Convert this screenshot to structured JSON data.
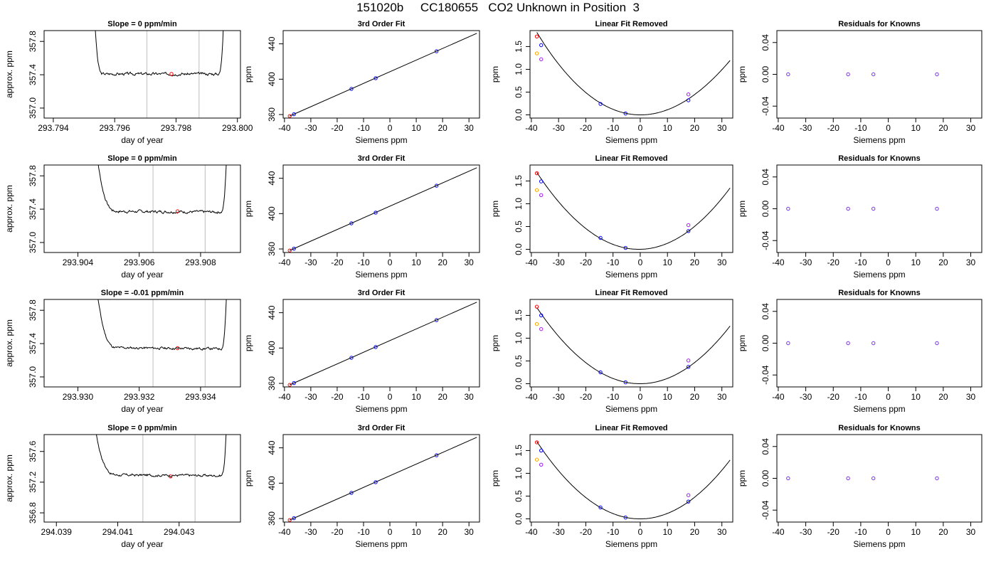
{
  "page": {
    "title": "151020b     CC180655   CO2 Unknown in Position  3"
  },
  "colors": {
    "axis": "#000000",
    "curve": "#000000",
    "vline": "#c8c8c8",
    "marker_red": "#ff0000",
    "marker_blue": "#0000ff",
    "marker_orange": "#ffa500",
    "marker_purple": "#a020f0",
    "marker_violet": "#7b2fe0"
  },
  "chart_data": [
    {
      "type": "line",
      "panel": "trace",
      "row": 0,
      "title": "Slope =  0  ppm/min",
      "xlabel": "day of year",
      "ylabel": "approx. ppm",
      "xlim": [
        293.7937,
        293.8001
      ],
      "ylim": [
        356.88,
        357.93
      ],
      "xticks": [
        293.794,
        293.796,
        293.798,
        293.8
      ],
      "xtick_labels": [
        "293.794",
        "293.796",
        "293.798",
        "293.800"
      ],
      "yticks": [
        357.0,
        357.4,
        357.8
      ],
      "ytick_labels": [
        "357.0",
        "357.4",
        "357.8"
      ],
      "trace": {
        "x_start": 293.7953,
        "x_end": 293.7996,
        "x_drop_end": 293.79562,
        "x_rise_start": 293.79937,
        "level": 357.41,
        "noise": 0.018,
        "drift": 0.0,
        "seed": 3
      },
      "vlines": [
        293.79705,
        293.79875
      ],
      "point": [
        293.79785,
        357.41
      ]
    },
    {
      "type": "line",
      "panel": "trace",
      "row": 1,
      "title": "Slope =  0  ppm/min",
      "xlabel": "day of year",
      "ylabel": "approx. ppm",
      "xlim": [
        293.9029,
        293.9093
      ],
      "ylim": [
        356.88,
        357.93
      ],
      "xticks": [
        293.904,
        293.906,
        293.908
      ],
      "xtick_labels": [
        "293.904",
        "293.906",
        "293.908"
      ],
      "yticks": [
        357.0,
        357.4,
        357.8
      ],
      "ytick_labels": [
        "357.0",
        "357.4",
        "357.8"
      ],
      "trace": {
        "x_start": 293.9045,
        "x_end": 293.9089,
        "x_drop_end": 293.90532,
        "x_rise_start": 293.90865,
        "level": 357.37,
        "noise": 0.018,
        "drift": -0.01,
        "seed": 7
      },
      "vlines": [
        293.90645,
        293.90815
      ],
      "point": [
        293.90725,
        357.375
      ]
    },
    {
      "type": "line",
      "panel": "trace",
      "row": 2,
      "title": "Slope =  -0.01  ppm/min",
      "xlabel": "day of year",
      "ylabel": "approx. ppm",
      "xlim": [
        293.9289,
        293.9353
      ],
      "ylim": [
        356.88,
        357.93
      ],
      "xticks": [
        293.93,
        293.932,
        293.934
      ],
      "xtick_labels": [
        "293.930",
        "293.932",
        "293.934"
      ],
      "yticks": [
        357.0,
        357.4,
        357.8
      ],
      "ytick_labels": [
        "357.0",
        "357.4",
        "357.8"
      ],
      "trace": {
        "x_start": 293.9305,
        "x_end": 293.9349,
        "x_drop_end": 293.93133,
        "x_rise_start": 293.93465,
        "level": 357.345,
        "noise": 0.016,
        "drift": -0.015,
        "seed": 11
      },
      "vlines": [
        293.93245,
        293.93415
      ],
      "point": [
        293.93325,
        357.345
      ]
    },
    {
      "type": "line",
      "panel": "trace",
      "row": 3,
      "title": "Slope =  0  ppm/min",
      "xlabel": "day of year",
      "ylabel": "approx. ppm",
      "xlim": [
        294.0386,
        294.045
      ],
      "ylim": [
        356.68,
        357.82
      ],
      "xticks": [
        294.039,
        294.041,
        294.043
      ],
      "xtick_labels": [
        "294.039",
        "294.041",
        "294.043"
      ],
      "yticks": [
        356.8,
        357.2,
        357.6
      ],
      "ytick_labels": [
        "356.8",
        "357.2",
        "357.6"
      ],
      "trace": {
        "x_start": 294.0401,
        "x_end": 294.0446,
        "x_drop_end": 294.04103,
        "x_rise_start": 294.04435,
        "level": 357.29,
        "noise": 0.018,
        "drift": -0.01,
        "seed": 17
      },
      "vlines": [
        294.04182,
        294.04352
      ],
      "point": [
        294.04272,
        357.275
      ]
    },
    {
      "type": "scatter",
      "panel": "fit",
      "row": 0,
      "title": "3rd Order Fit",
      "xlabel": "Siemens ppm",
      "ylabel": "ppm",
      "xlim": [
        -40.5,
        34
      ],
      "ylim": [
        356,
        455
      ],
      "xticks": [
        -40,
        -30,
        -20,
        -10,
        0,
        10,
        20,
        30
      ],
      "xtick_labels": [
        "-40",
        "-30",
        "-20",
        "-10",
        "0",
        "10",
        "20",
        "30"
      ],
      "yticks": [
        360,
        400,
        440
      ],
      "ytick_labels": [
        "360",
        "400",
        "440"
      ],
      "line": {
        "x0": -38,
        "y0": 358.3,
        "x1": 33,
        "y1": 451.9
      },
      "points": [
        {
          "x": -38,
          "y": 358.3,
          "color": "red"
        },
        {
          "x": -36.4,
          "y": 360.4,
          "color": "blue"
        },
        {
          "x": -14.6,
          "y": 389.0,
          "color": "blue"
        },
        {
          "x": -5.4,
          "y": 401.1,
          "color": "blue"
        },
        {
          "x": 17.7,
          "y": 431.6,
          "color": "blue"
        }
      ]
    },
    {
      "type": "scatter",
      "panel": "fit",
      "row": 1,
      "title": "3rd Order Fit",
      "xlabel": "Siemens ppm",
      "ylabel": "ppm",
      "xlim": [
        -40.5,
        34
      ],
      "ylim": [
        356,
        455
      ],
      "xticks": [
        -40,
        -30,
        -20,
        -10,
        0,
        10,
        20,
        30
      ],
      "xtick_labels": [
        "-40",
        "-30",
        "-20",
        "-10",
        "0",
        "10",
        "20",
        "30"
      ],
      "yticks": [
        360,
        400,
        440
      ],
      "ytick_labels": [
        "360",
        "400",
        "440"
      ],
      "line": {
        "x0": -38,
        "y0": 358.3,
        "x1": 33,
        "y1": 451.9
      },
      "points": [
        {
          "x": -38,
          "y": 358.3,
          "color": "red"
        },
        {
          "x": -36.4,
          "y": 360.4,
          "color": "blue"
        },
        {
          "x": -14.6,
          "y": 389.0,
          "color": "blue"
        },
        {
          "x": -5.4,
          "y": 401.1,
          "color": "blue"
        },
        {
          "x": 17.7,
          "y": 431.6,
          "color": "blue"
        }
      ]
    },
    {
      "type": "scatter",
      "panel": "fit",
      "row": 2,
      "title": "3rd Order Fit",
      "xlabel": "Siemens ppm",
      "ylabel": "ppm",
      "xlim": [
        -40.5,
        34
      ],
      "ylim": [
        356,
        455
      ],
      "xticks": [
        -40,
        -30,
        -20,
        -10,
        0,
        10,
        20,
        30
      ],
      "xtick_labels": [
        "-40",
        "-30",
        "-20",
        "-10",
        "0",
        "10",
        "20",
        "30"
      ],
      "yticks": [
        360,
        400,
        440
      ],
      "ytick_labels": [
        "360",
        "400",
        "440"
      ],
      "line": {
        "x0": -38,
        "y0": 358.3,
        "x1": 33,
        "y1": 451.9
      },
      "points": [
        {
          "x": -38,
          "y": 358.3,
          "color": "red"
        },
        {
          "x": -36.4,
          "y": 360.4,
          "color": "blue"
        },
        {
          "x": -14.6,
          "y": 389.0,
          "color": "blue"
        },
        {
          "x": -5.4,
          "y": 401.1,
          "color": "blue"
        },
        {
          "x": 17.7,
          "y": 431.6,
          "color": "blue"
        }
      ]
    },
    {
      "type": "scatter",
      "panel": "fit",
      "row": 3,
      "title": "3rd Order Fit",
      "xlabel": "Siemens ppm",
      "ylabel": "ppm",
      "xlim": [
        -40.5,
        34
      ],
      "ylim": [
        356,
        455
      ],
      "xticks": [
        -40,
        -30,
        -20,
        -10,
        0,
        10,
        20,
        30
      ],
      "xtick_labels": [
        "-40",
        "-30",
        "-20",
        "-10",
        "0",
        "10",
        "20",
        "30"
      ],
      "yticks": [
        360,
        400,
        440
      ],
      "ytick_labels": [
        "360",
        "400",
        "440"
      ],
      "line": {
        "x0": -38,
        "y0": 358.3,
        "x1": 33,
        "y1": 451.9
      },
      "points": [
        {
          "x": -38,
          "y": 358.3,
          "color": "red"
        },
        {
          "x": -36.4,
          "y": 360.4,
          "color": "blue"
        },
        {
          "x": -14.6,
          "y": 389.0,
          "color": "blue"
        },
        {
          "x": -5.4,
          "y": 401.1,
          "color": "blue"
        },
        {
          "x": 17.7,
          "y": 431.6,
          "color": "blue"
        }
      ]
    },
    {
      "type": "scatter",
      "panel": "resid",
      "row": 0,
      "title": "Linear Fit Removed",
      "xlabel": "Siemens ppm",
      "ylabel": "ppm",
      "xlim": [
        -40.5,
        34
      ],
      "ylim": [
        -0.07,
        1.85
      ],
      "xticks": [
        -40,
        -30,
        -20,
        -10,
        0,
        10,
        20,
        30
      ],
      "xtick_labels": [
        "-40",
        "-30",
        "-20",
        "-10",
        "0",
        "10",
        "20",
        "30"
      ],
      "yticks": [
        0,
        0.5,
        1,
        1.5
      ],
      "ytick_labels": [
        "0.0",
        "0.5",
        "1.0",
        "1.5"
      ],
      "curve": {
        "a": 0.0011706,
        "b": -0.00027,
        "c": -2e-06
      },
      "points": [
        {
          "x": -38,
          "y": 1.72,
          "color": "red"
        },
        {
          "x": -38,
          "y": 1.35,
          "color": "orange"
        },
        {
          "x": -36.4,
          "y": 1.53,
          "color": "blue"
        },
        {
          "x": -36.4,
          "y": 1.22,
          "color": "purple"
        },
        {
          "x": -14.6,
          "y": 0.24,
          "color": "blue"
        },
        {
          "x": -5.4,
          "y": 0.03,
          "color": "blue"
        },
        {
          "x": 17.7,
          "y": 0.32,
          "color": "blue"
        },
        {
          "x": 17.7,
          "y": 0.45,
          "color": "purple"
        }
      ]
    },
    {
      "type": "scatter",
      "panel": "resid",
      "row": 1,
      "title": "Linear Fit Removed",
      "xlabel": "Siemens ppm",
      "ylabel": "ppm",
      "xlim": [
        -40.5,
        34
      ],
      "ylim": [
        -0.07,
        1.85
      ],
      "xticks": [
        -40,
        -30,
        -20,
        -10,
        0,
        10,
        20,
        30
      ],
      "xtick_labels": [
        "-40",
        "-30",
        "-20",
        "-10",
        "0",
        "10",
        "20",
        "30"
      ],
      "yticks": [
        0,
        0.5,
        1,
        1.5
      ],
      "ytick_labels": [
        "0.0",
        "0.5",
        "1.0",
        "1.5"
      ],
      "curve": {
        "a": 0.0012,
        "b": 0.0012,
        "c": 0.0
      },
      "points": [
        {
          "x": -38,
          "y": 1.67,
          "color": "red"
        },
        {
          "x": -38,
          "y": 1.3,
          "color": "orange"
        },
        {
          "x": -36.4,
          "y": 1.49,
          "color": "blue"
        },
        {
          "x": -36.4,
          "y": 1.19,
          "color": "purple"
        },
        {
          "x": -14.6,
          "y": 0.25,
          "color": "blue"
        },
        {
          "x": -5.4,
          "y": 0.03,
          "color": "blue"
        },
        {
          "x": 17.7,
          "y": 0.4,
          "color": "blue"
        },
        {
          "x": 17.7,
          "y": 0.53,
          "color": "purple"
        }
      ]
    },
    {
      "type": "scatter",
      "panel": "resid",
      "row": 2,
      "title": "Linear Fit Removed",
      "xlabel": "Siemens ppm",
      "ylabel": "ppm",
      "xlim": [
        -40.5,
        34
      ],
      "ylim": [
        -0.07,
        1.85
      ],
      "xticks": [
        -40,
        -30,
        -20,
        -10,
        0,
        10,
        20,
        30
      ],
      "xtick_labels": [
        "-40",
        "-30",
        "-20",
        "-10",
        "0",
        "10",
        "20",
        "30"
      ],
      "yticks": [
        0,
        0.5,
        1,
        1.5
      ],
      "ytick_labels": [
        "0.0",
        "0.5",
        "1.0",
        "1.5"
      ],
      "curve": {
        "a": 0.00116,
        "b": 0.0001,
        "c": 0.0
      },
      "points": [
        {
          "x": -38,
          "y": 1.69,
          "color": "red"
        },
        {
          "x": -38,
          "y": 1.31,
          "color": "orange"
        },
        {
          "x": -36.4,
          "y": 1.5,
          "color": "blue"
        },
        {
          "x": -36.4,
          "y": 1.2,
          "color": "purple"
        },
        {
          "x": -14.6,
          "y": 0.25,
          "color": "blue"
        },
        {
          "x": -5.4,
          "y": 0.03,
          "color": "blue"
        },
        {
          "x": 17.7,
          "y": 0.37,
          "color": "blue"
        },
        {
          "x": 17.7,
          "y": 0.51,
          "color": "purple"
        }
      ]
    },
    {
      "type": "scatter",
      "panel": "resid",
      "row": 3,
      "title": "Linear Fit Removed",
      "xlabel": "Siemens ppm",
      "ylabel": "ppm",
      "xlim": [
        -40.5,
        34
      ],
      "ylim": [
        -0.07,
        1.85
      ],
      "xticks": [
        -40,
        -30,
        -20,
        -10,
        0,
        10,
        20,
        30
      ],
      "xtick_labels": [
        "-40",
        "-30",
        "-20",
        "-10",
        "0",
        "10",
        "20",
        "30"
      ],
      "yticks": [
        0,
        0.5,
        1,
        1.5
      ],
      "ytick_labels": [
        "0.0",
        "0.5",
        "1.0",
        "1.5"
      ],
      "curve": {
        "a": 0.00118,
        "b": 0.0002,
        "c": 0.0
      },
      "points": [
        {
          "x": -38,
          "y": 1.68,
          "color": "red"
        },
        {
          "x": -38,
          "y": 1.3,
          "color": "orange"
        },
        {
          "x": -36.4,
          "y": 1.5,
          "color": "blue"
        },
        {
          "x": -36.4,
          "y": 1.19,
          "color": "purple"
        },
        {
          "x": -14.6,
          "y": 0.25,
          "color": "blue"
        },
        {
          "x": -5.4,
          "y": 0.03,
          "color": "blue"
        },
        {
          "x": 17.7,
          "y": 0.38,
          "color": "blue"
        },
        {
          "x": 17.7,
          "y": 0.52,
          "color": "purple"
        }
      ]
    },
    {
      "type": "scatter",
      "panel": "known",
      "row": 0,
      "title": "Residuals for Knowns",
      "xlabel": "Siemens ppm",
      "ylabel": "ppm",
      "xlim": [
        -40.5,
        34
      ],
      "ylim": [
        -0.055,
        0.055
      ],
      "xticks": [
        -40,
        -30,
        -20,
        -10,
        0,
        10,
        20,
        30
      ],
      "xtick_labels": [
        "-40",
        "-30",
        "-20",
        "-10",
        "0",
        "10",
        "20",
        "30"
      ],
      "yticks": [
        -0.04,
        0,
        0.04
      ],
      "ytick_labels": [
        "-0.04",
        "0.00",
        "0.04"
      ],
      "points": [
        {
          "x": -36.4,
          "y": 0,
          "color": "violet"
        },
        {
          "x": -14.6,
          "y": 0,
          "color": "violet"
        },
        {
          "x": -5.4,
          "y": 0,
          "color": "violet"
        },
        {
          "x": 17.7,
          "y": 0,
          "color": "violet"
        }
      ]
    },
    {
      "type": "scatter",
      "panel": "known",
      "row": 1,
      "title": "Residuals for Knowns",
      "xlabel": "Siemens ppm",
      "ylabel": "ppm",
      "xlim": [
        -40.5,
        34
      ],
      "ylim": [
        -0.055,
        0.055
      ],
      "xticks": [
        -40,
        -30,
        -20,
        -10,
        0,
        10,
        20,
        30
      ],
      "xtick_labels": [
        "-40",
        "-30",
        "-20",
        "-10",
        "0",
        "10",
        "20",
        "30"
      ],
      "yticks": [
        -0.04,
        0,
        0.04
      ],
      "ytick_labels": [
        "-0.04",
        "0.00",
        "0.04"
      ],
      "points": [
        {
          "x": -36.4,
          "y": 0,
          "color": "violet"
        },
        {
          "x": -14.6,
          "y": 0,
          "color": "violet"
        },
        {
          "x": -5.4,
          "y": 0,
          "color": "violet"
        },
        {
          "x": 17.7,
          "y": 0,
          "color": "violet"
        }
      ]
    },
    {
      "type": "scatter",
      "panel": "known",
      "row": 2,
      "title": "Residuals for Knowns",
      "xlabel": "Siemens ppm",
      "ylabel": "ppm",
      "xlim": [
        -40.5,
        34
      ],
      "ylim": [
        -0.055,
        0.055
      ],
      "xticks": [
        -40,
        -30,
        -20,
        -10,
        0,
        10,
        20,
        30
      ],
      "xtick_labels": [
        "-40",
        "-30",
        "-20",
        "-10",
        "0",
        "10",
        "20",
        "30"
      ],
      "yticks": [
        -0.04,
        0,
        0.04
      ],
      "ytick_labels": [
        "-0.04",
        "0.00",
        "0.04"
      ],
      "points": [
        {
          "x": -36.4,
          "y": 0,
          "color": "violet"
        },
        {
          "x": -14.6,
          "y": 0,
          "color": "violet"
        },
        {
          "x": -5.4,
          "y": 0,
          "color": "violet"
        },
        {
          "x": 17.7,
          "y": 0,
          "color": "violet"
        }
      ]
    },
    {
      "type": "scatter",
      "panel": "known",
      "row": 3,
      "title": "Residuals for Knowns",
      "xlabel": "Siemens ppm",
      "ylabel": "ppm",
      "xlim": [
        -40.5,
        34
      ],
      "ylim": [
        -0.055,
        0.055
      ],
      "xticks": [
        -40,
        -30,
        -20,
        -10,
        0,
        10,
        20,
        30
      ],
      "xtick_labels": [
        "-40",
        "-30",
        "-20",
        "-10",
        "0",
        "10",
        "20",
        "30"
      ],
      "yticks": [
        -0.04,
        0,
        0.04
      ],
      "ytick_labels": [
        "-0.04",
        "0.00",
        "0.04"
      ],
      "points": [
        {
          "x": -36.4,
          "y": 0,
          "color": "violet"
        },
        {
          "x": -14.6,
          "y": 0,
          "color": "violet"
        },
        {
          "x": -5.4,
          "y": 0,
          "color": "violet"
        },
        {
          "x": 17.7,
          "y": 0,
          "color": "violet"
        }
      ]
    }
  ]
}
